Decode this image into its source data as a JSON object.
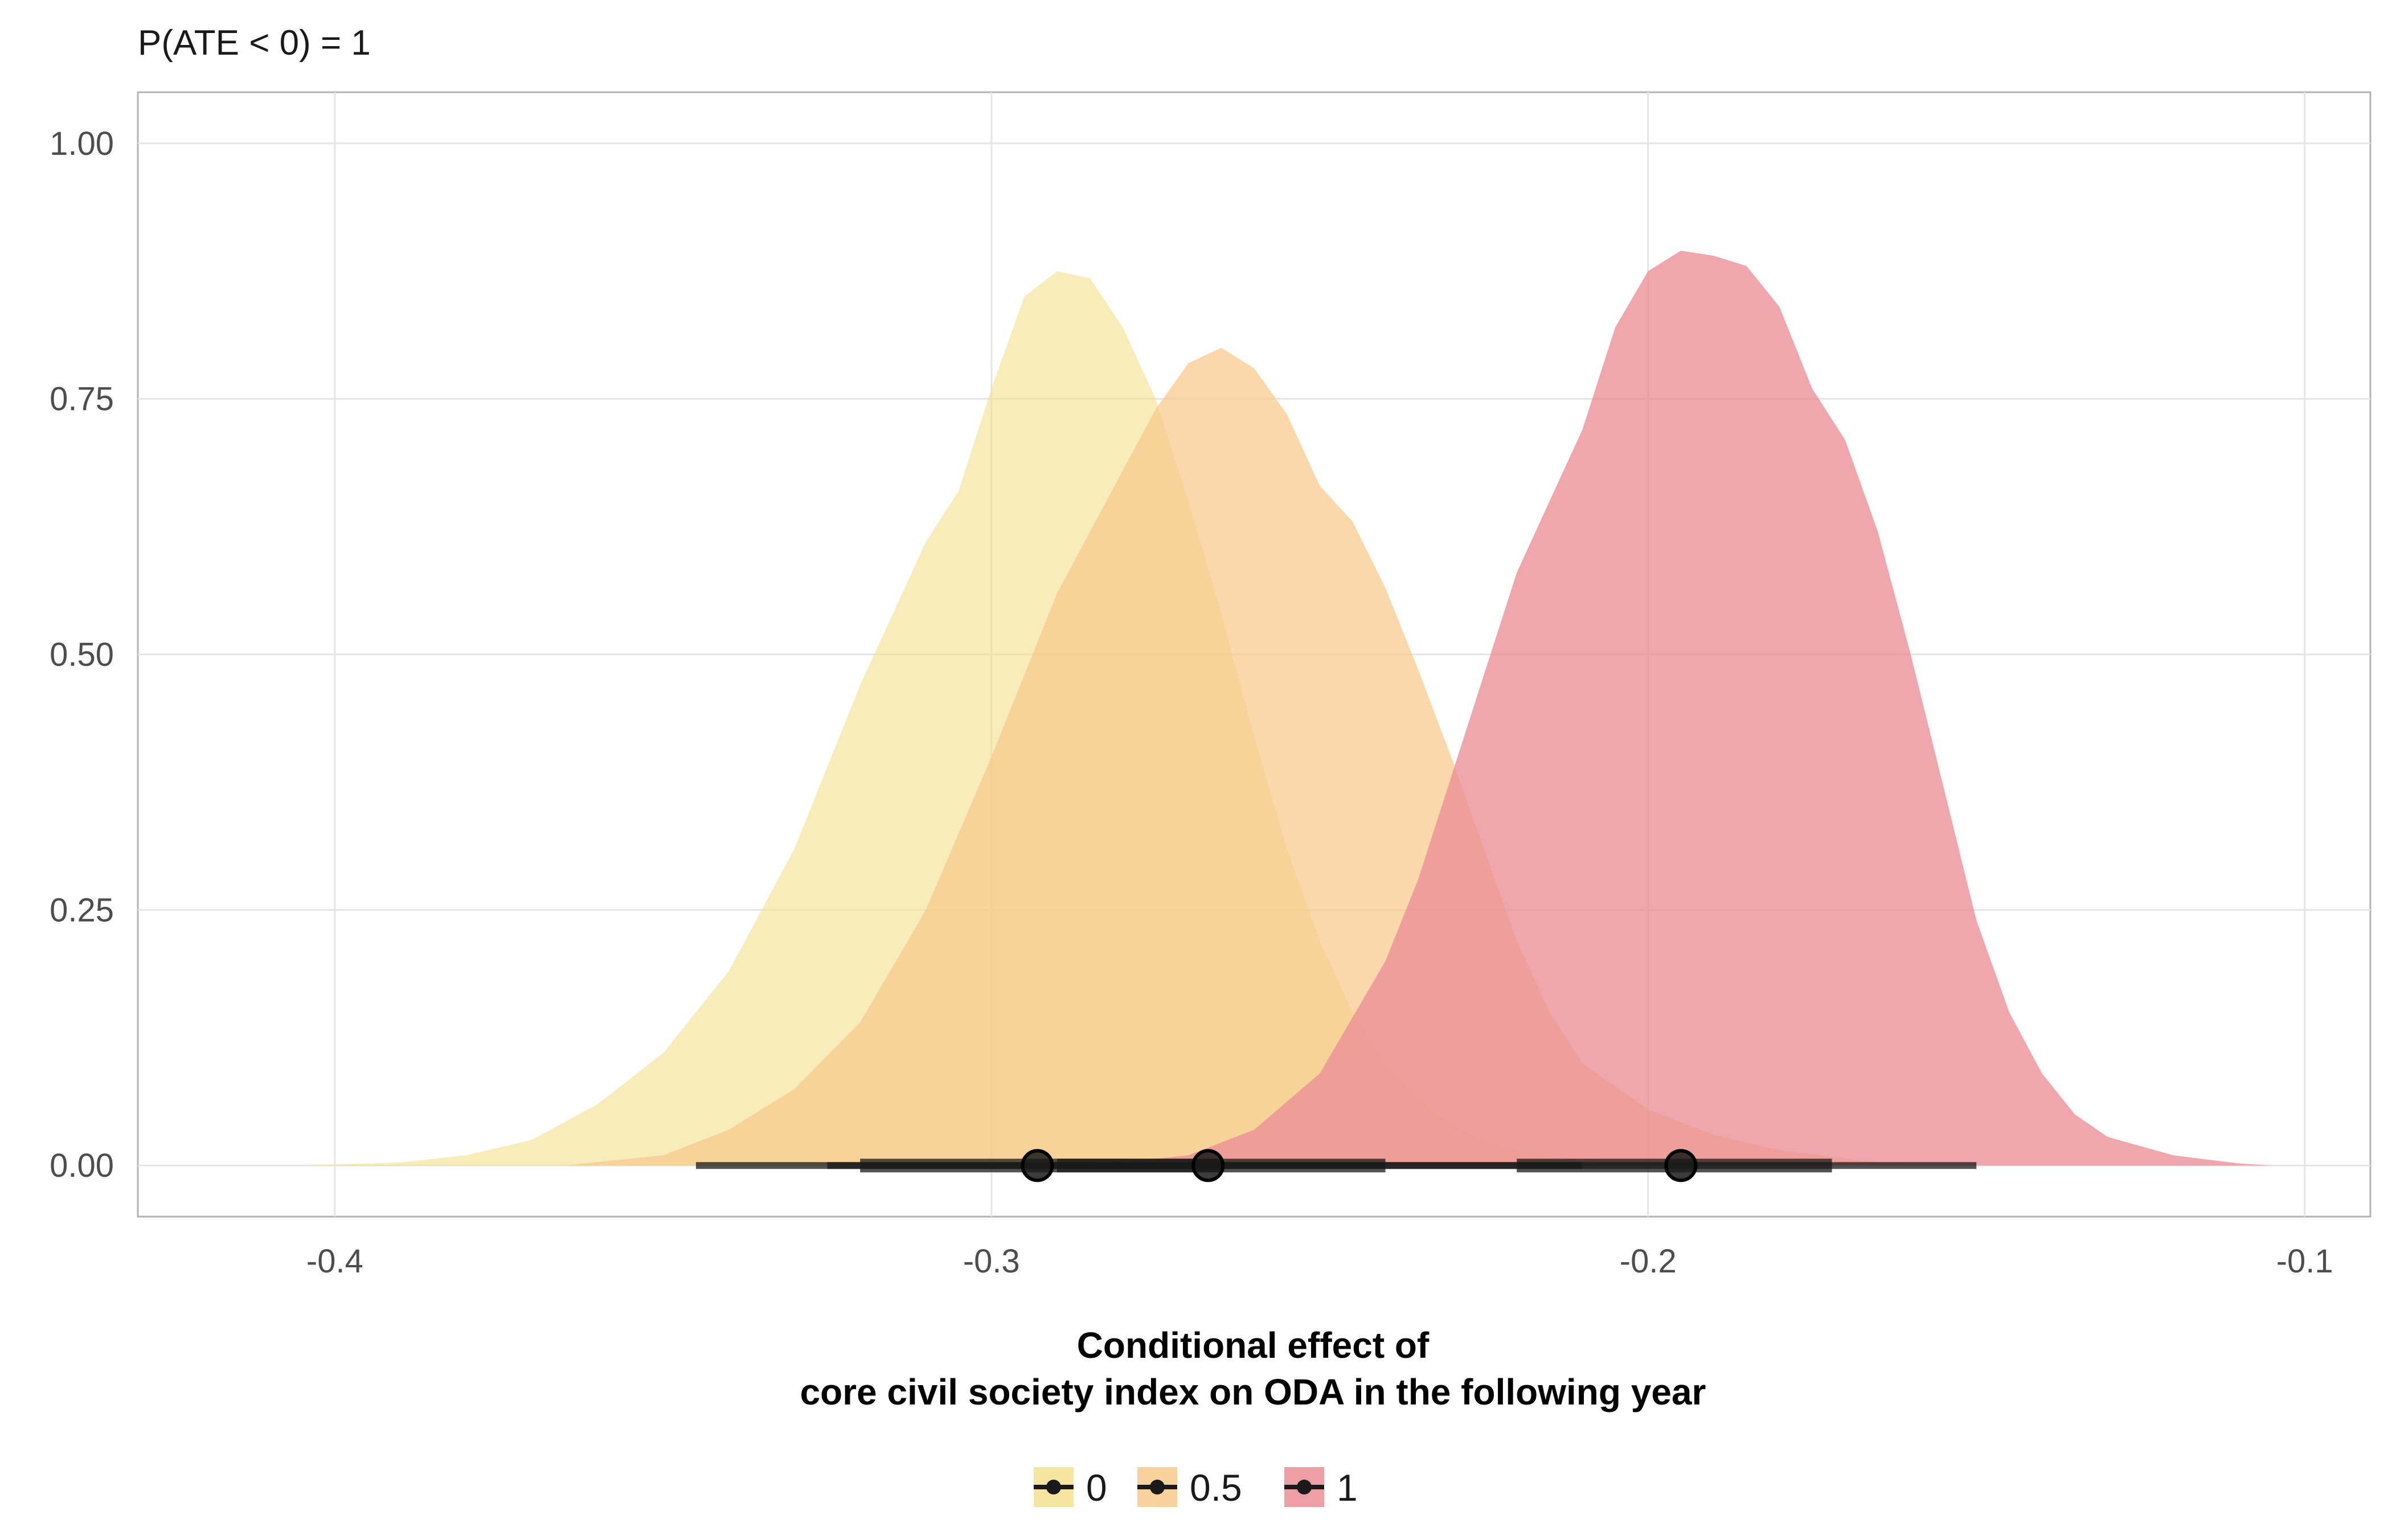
{
  "chart_data": {
    "type": "area",
    "subtitle": "P(ATE < 0) = 1",
    "xlabel_line1": "Conditional effect of",
    "xlabel_line2": "core civil society index on ODA in the following year",
    "ylabel": "",
    "xlim": [
      -0.43,
      -0.09
    ],
    "ylim": [
      -0.05,
      1.05
    ],
    "x_ticks": [
      -0.4,
      -0.3,
      -0.2,
      -0.1
    ],
    "x_tick_labels": [
      "-0.4",
      "-0.3",
      "-0.2",
      "-0.1"
    ],
    "y_ticks": [
      0.0,
      0.25,
      0.5,
      0.75,
      1.0
    ],
    "y_tick_labels": [
      "0.00",
      "0.25",
      "0.50",
      "0.75",
      "1.00"
    ],
    "grid": true,
    "legend_position": "bottom",
    "series": [
      {
        "name": "0",
        "color": "#F3E08F",
        "opacity": 0.62,
        "point": -0.293,
        "interval_66": [
          -0.32,
          -0.265
        ],
        "interval_95": [
          -0.345,
          -0.24
        ],
        "density": [
          [
            -0.405,
            0.0
          ],
          [
            -0.39,
            0.003
          ],
          [
            -0.38,
            0.01
          ],
          [
            -0.37,
            0.025
          ],
          [
            -0.36,
            0.06
          ],
          [
            -0.35,
            0.11
          ],
          [
            -0.34,
            0.19
          ],
          [
            -0.33,
            0.31
          ],
          [
            -0.32,
            0.47
          ],
          [
            -0.31,
            0.61
          ],
          [
            -0.305,
            0.66
          ],
          [
            -0.3,
            0.76
          ],
          [
            -0.295,
            0.85
          ],
          [
            -0.29,
            0.875
          ],
          [
            -0.285,
            0.868
          ],
          [
            -0.28,
            0.82
          ],
          [
            -0.275,
            0.75
          ],
          [
            -0.27,
            0.65
          ],
          [
            -0.265,
            0.54
          ],
          [
            -0.26,
            0.42
          ],
          [
            -0.255,
            0.31
          ],
          [
            -0.25,
            0.22
          ],
          [
            -0.245,
            0.15
          ],
          [
            -0.24,
            0.1
          ],
          [
            -0.235,
            0.065
          ],
          [
            -0.23,
            0.04
          ],
          [
            -0.225,
            0.025
          ],
          [
            -0.22,
            0.015
          ],
          [
            -0.21,
            0.005
          ],
          [
            -0.2,
            0.0
          ]
        ]
      },
      {
        "name": "0.5",
        "color": "#F8C98C",
        "opacity": 0.72,
        "point": -0.267,
        "interval_66": [
          -0.29,
          -0.24
        ],
        "interval_95": [
          -0.325,
          -0.21
        ],
        "density": [
          [
            -0.365,
            0.0
          ],
          [
            -0.35,
            0.01
          ],
          [
            -0.34,
            0.035
          ],
          [
            -0.33,
            0.075
          ],
          [
            -0.32,
            0.14
          ],
          [
            -0.31,
            0.25
          ],
          [
            -0.3,
            0.4
          ],
          [
            -0.29,
            0.56
          ],
          [
            -0.28,
            0.68
          ],
          [
            -0.275,
            0.74
          ],
          [
            -0.27,
            0.785
          ],
          [
            -0.265,
            0.8
          ],
          [
            -0.26,
            0.78
          ],
          [
            -0.255,
            0.735
          ],
          [
            -0.25,
            0.665
          ],
          [
            -0.245,
            0.63
          ],
          [
            -0.24,
            0.565
          ],
          [
            -0.235,
            0.485
          ],
          [
            -0.23,
            0.4
          ],
          [
            -0.225,
            0.31
          ],
          [
            -0.22,
            0.22
          ],
          [
            -0.215,
            0.15
          ],
          [
            -0.21,
            0.1
          ],
          [
            -0.2,
            0.055
          ],
          [
            -0.19,
            0.03
          ],
          [
            -0.18,
            0.015
          ],
          [
            -0.17,
            0.007
          ],
          [
            -0.16,
            0.0
          ]
        ]
      },
      {
        "name": "1",
        "color": "#EB8E96",
        "opacity": 0.78,
        "point": -0.195,
        "interval_66": [
          -0.22,
          -0.172
        ],
        "interval_95": [
          -0.24,
          -0.15
        ],
        "density": [
          [
            -0.285,
            0.0
          ],
          [
            -0.27,
            0.01
          ],
          [
            -0.26,
            0.035
          ],
          [
            -0.25,
            0.09
          ],
          [
            -0.24,
            0.2
          ],
          [
            -0.235,
            0.28
          ],
          [
            -0.23,
            0.38
          ],
          [
            -0.225,
            0.48
          ],
          [
            -0.22,
            0.58
          ],
          [
            -0.215,
            0.65
          ],
          [
            -0.21,
            0.72
          ],
          [
            -0.205,
            0.82
          ],
          [
            -0.2,
            0.875
          ],
          [
            -0.195,
            0.895
          ],
          [
            -0.19,
            0.89
          ],
          [
            -0.185,
            0.88
          ],
          [
            -0.18,
            0.84
          ],
          [
            -0.175,
            0.76
          ],
          [
            -0.17,
            0.71
          ],
          [
            -0.165,
            0.62
          ],
          [
            -0.16,
            0.5
          ],
          [
            -0.155,
            0.37
          ],
          [
            -0.15,
            0.24
          ],
          [
            -0.145,
            0.15
          ],
          [
            -0.14,
            0.09
          ],
          [
            -0.135,
            0.05
          ],
          [
            -0.13,
            0.028
          ],
          [
            -0.12,
            0.01
          ],
          [
            -0.11,
            0.002
          ],
          [
            -0.105,
            0.0
          ]
        ]
      }
    ]
  }
}
